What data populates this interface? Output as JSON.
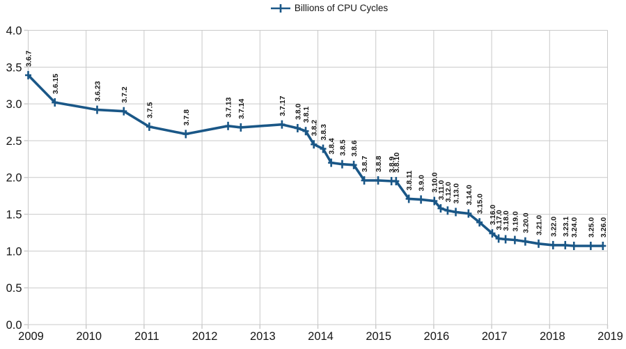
{
  "legend": {
    "label": "Billions of CPU Cycles"
  },
  "colors": {
    "series": "#1a5787",
    "grid": "#c9c9c9",
    "text": "#141414",
    "background": "#ffffff"
  },
  "chart_data": {
    "type": "line",
    "title": "",
    "legend_entries": [
      "Billions of CPU Cycles"
    ],
    "legend_position": "top-center",
    "grid": true,
    "xlabel": "",
    "ylabel": "",
    "x_range": [
      2009,
      2019
    ],
    "x_ticks": [
      2009,
      2010,
      2011,
      2012,
      2013,
      2014,
      2015,
      2016,
      2017,
      2018,
      2019
    ],
    "x_tick_labels": [
      "2009",
      "2010",
      "2011",
      "2012",
      "2013",
      "2014",
      "2015",
      "2016",
      "2017",
      "2018",
      "2019"
    ],
    "ylim": [
      0.0,
      4.0
    ],
    "y_ticks": [
      0.0,
      0.5,
      1.0,
      1.5,
      2.0,
      2.5,
      3.0,
      3.5,
      4.0
    ],
    "y_tick_labels": [
      "0.0",
      "0.5",
      "1.0",
      "1.5",
      "2.0",
      "2.5",
      "3.0",
      "3.5",
      "4.0"
    ],
    "series": [
      {
        "name": "Billions of CPU Cycles",
        "marker": "plus",
        "points": [
          {
            "label": "3.6.7",
            "x": 2009.0,
            "y": 3.39
          },
          {
            "label": "3.6.15",
            "x": 2009.46,
            "y": 3.02
          },
          {
            "label": "3.6.23",
            "x": 2010.19,
            "y": 2.92
          },
          {
            "label": "3.7.2",
            "x": 2010.65,
            "y": 2.9
          },
          {
            "label": "3.7.5",
            "x": 2011.09,
            "y": 2.69
          },
          {
            "label": "3.7.8",
            "x": 2011.72,
            "y": 2.59
          },
          {
            "label": "3.7.13",
            "x": 2012.45,
            "y": 2.7
          },
          {
            "label": "3.7.14",
            "x": 2012.67,
            "y": 2.68
          },
          {
            "label": "3.7.17",
            "x": 2013.38,
            "y": 2.72
          },
          {
            "label": "3.8.0",
            "x": 2013.65,
            "y": 2.67
          },
          {
            "label": "3.8.1",
            "x": 2013.79,
            "y": 2.63
          },
          {
            "label": "3.8.2",
            "x": 2013.93,
            "y": 2.45
          },
          {
            "label": "3.8.3",
            "x": 2014.09,
            "y": 2.39
          },
          {
            "label": "3.8.4",
            "x": 2014.23,
            "y": 2.2
          },
          {
            "label": "3.8.5",
            "x": 2014.42,
            "y": 2.18
          },
          {
            "label": "3.8.6",
            "x": 2014.62,
            "y": 2.17
          },
          {
            "label": "3.8.7",
            "x": 2014.8,
            "y": 1.96
          },
          {
            "label": "3.8.8",
            "x": 2015.04,
            "y": 1.96
          },
          {
            "label": "3.8.9",
            "x": 2015.27,
            "y": 1.95
          },
          {
            "label": "3.8.10",
            "x": 2015.35,
            "y": 1.95
          },
          {
            "label": "3.8.11",
            "x": 2015.57,
            "y": 1.71
          },
          {
            "label": "3.9.0",
            "x": 2015.78,
            "y": 1.7
          },
          {
            "label": "3.10.0",
            "x": 2016.01,
            "y": 1.68
          },
          {
            "label": "3.11.0",
            "x": 2016.12,
            "y": 1.58
          },
          {
            "label": "3.12.0",
            "x": 2016.24,
            "y": 1.55
          },
          {
            "label": "3.13.0",
            "x": 2016.38,
            "y": 1.53
          },
          {
            "label": "3.14.0",
            "x": 2016.6,
            "y": 1.51
          },
          {
            "label": "3.15.0",
            "x": 2016.79,
            "y": 1.39
          },
          {
            "label": "3.16.0",
            "x": 2017.01,
            "y": 1.24
          },
          {
            "label": "3.17.0",
            "x": 2017.12,
            "y": 1.17
          },
          {
            "label": "3.18.0",
            "x": 2017.24,
            "y": 1.16
          },
          {
            "label": "3.19.0",
            "x": 2017.4,
            "y": 1.15
          },
          {
            "label": "3.20.0",
            "x": 2017.58,
            "y": 1.13
          },
          {
            "label": "3.21.0",
            "x": 2017.81,
            "y": 1.1
          },
          {
            "label": "3.22.0",
            "x": 2018.06,
            "y": 1.08
          },
          {
            "label": "3.23.1",
            "x": 2018.27,
            "y": 1.08
          },
          {
            "label": "3.24.0",
            "x": 2018.42,
            "y": 1.07
          },
          {
            "label": "3.25.0",
            "x": 2018.71,
            "y": 1.07
          },
          {
            "label": "3.26.0",
            "x": 2018.92,
            "y": 1.07
          }
        ]
      }
    ]
  }
}
